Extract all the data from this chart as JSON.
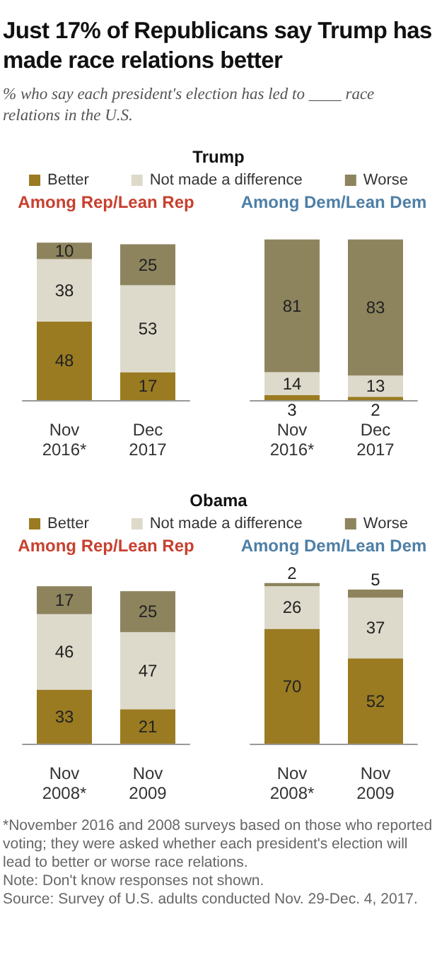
{
  "chart_data": [
    {
      "type": "bar",
      "title": "Just 17% of Republicans say Trump has made race relations better",
      "subtitle": "% who say each president's election has led to ____ race relations in the U.S.",
      "legend_title": "Trump",
      "legend": "top",
      "stacked": true,
      "data_labels": true,
      "tick_labels": "x",
      "annotations": [
        "Among Rep/Lean Rep"
      ],
      "categories": [
        "Nov 2016*",
        "Dec 2017"
      ],
      "series": [
        {
          "name": "Better",
          "color": "#9a7b22",
          "values": [
            48,
            17
          ]
        },
        {
          "name": "Not made a difference",
          "color": "#dedacb",
          "values": [
            38,
            53
          ]
        },
        {
          "name": "Worse",
          "color": "#8d845e",
          "values": [
            10,
            25
          ]
        }
      ]
    },
    {
      "type": "bar",
      "stacked": true,
      "data_labels": true,
      "tick_labels": "x",
      "annotations": [
        "Among Dem/Lean Dem"
      ],
      "categories": [
        "Nov 2016*",
        "Dec 2017"
      ],
      "series": [
        {
          "color": "#9a7b22",
          "values": [
            3,
            2
          ]
        },
        {
          "color": "#dedacb",
          "values": [
            14,
            13
          ]
        },
        {
          "color": "#8d845e",
          "values": [
            81,
            83
          ]
        }
      ]
    },
    {
      "type": "bar",
      "legend_title": "Obama",
      "legend": "top",
      "stacked": true,
      "data_labels": true,
      "tick_labels": "x",
      "annotations": [
        "Among Rep/Lean Rep"
      ],
      "categories": [
        "Nov 2008*",
        "Nov 2009"
      ],
      "series": [
        {
          "name": "Better",
          "color": "#9a7b22",
          "values": [
            33,
            21
          ]
        },
        {
          "name": "Not made a difference",
          "color": "#dedacb",
          "values": [
            46,
            47
          ]
        },
        {
          "name": "Worse",
          "color": "#8d845e",
          "values": [
            17,
            25
          ]
        }
      ]
    },
    {
      "type": "bar",
      "stacked": true,
      "data_labels": true,
      "tick_labels": "x",
      "annotations": [
        "Among Dem/Lean Dem",
        "*November 2016 and 2008 surveys based on those who reported voting; they were asked whether each president's election will lead to better or worse race relations.",
        "Note: Don't know responses not shown.",
        "Source: Survey of U.S. adults conducted Nov. 29-Dec. 4, 2017."
      ],
      "categories": [
        "Nov 2008*",
        "Nov 2009"
      ],
      "series": [
        {
          "color": "#9a7b22",
          "values": [
            70,
            52
          ]
        },
        {
          "color": "#dedacb",
          "values": [
            26,
            37
          ]
        },
        {
          "color": "#8d845e",
          "values": [
            2,
            5
          ]
        }
      ]
    }
  ]
}
